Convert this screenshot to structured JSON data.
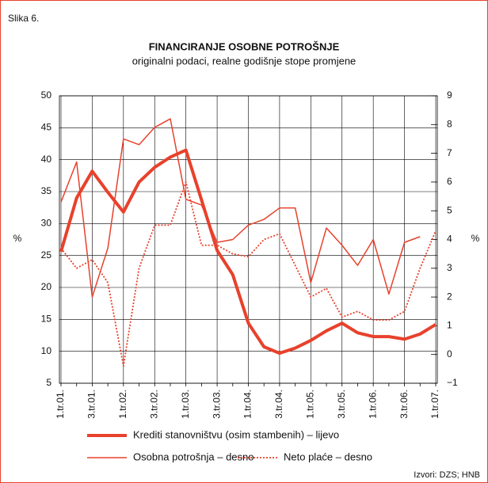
{
  "chart_data": {
    "type": "line",
    "figure_label": "Slika 6.",
    "title": "FINANCIRANJE OSOBNE POTROŠNJE",
    "subtitle": "originalni podaci, realne godišnje stope promjene",
    "ylabel": "%",
    "y2label": "%",
    "source": "Izvori: DZS; HNB",
    "categories": [
      "1.tr.01.",
      null,
      "3.tr.01.",
      null,
      "1.tr.02.",
      null,
      "3.tr.02.",
      null,
      "1.tr.03.",
      null,
      "3.tr.03.",
      null,
      "1.tr.04.",
      null,
      "3.tr.04.",
      null,
      "1.tr.05.",
      null,
      "3.tr.05.",
      null,
      "1.tr.06.",
      null,
      "3.tr.06.",
      null,
      "1.tr.07."
    ],
    "ylim": [
      5,
      50
    ],
    "yticks": [
      5,
      10,
      15,
      20,
      25,
      30,
      35,
      40,
      45,
      50
    ],
    "y2lim": [
      -1,
      9
    ],
    "y2ticks": [
      {
        "value": -1,
        "label": "−1"
      },
      0,
      1,
      2,
      3,
      4,
      5,
      6,
      7,
      8,
      9
    ],
    "grid": true,
    "series": [
      {
        "name": "Krediti stanovništvu (osim stambenih) – lijevo",
        "color": "#e8412c",
        "width": 4,
        "style": "solid",
        "values": [
          25.6,
          34,
          38.2,
          34.9,
          31.8,
          36.5,
          38.8,
          40.4,
          41.5,
          33.7,
          25.8,
          22,
          14.4,
          10.7,
          9.7,
          10.5,
          11.7,
          13.2,
          14.4,
          12.9,
          12.3,
          12.3,
          11.9,
          12.7,
          14.2
        ]
      },
      {
        "name": "Osobna potrošnja – desno",
        "color": "#e8412c",
        "width": 1.5,
        "style": "solid",
        "axis": "y2",
        "values": [
          5.3,
          6.7,
          2.0,
          3.7,
          7.5,
          7.3,
          7.9,
          8.2,
          5.4,
          5.2,
          3.9,
          4.0,
          4.5,
          4.7,
          5.1,
          5.1,
          2.5,
          4.4,
          3.8,
          3.1,
          4.0,
          2.1,
          3.9,
          4.1,
          null
        ]
      },
      {
        "name": "Neto plaće – desno",
        "color": "#e8412c",
        "width": 1.8,
        "style": "dotted",
        "axis": "y2",
        "values": [
          3.7,
          3.0,
          3.3,
          2.5,
          -0.4,
          3.0,
          4.5,
          4.5,
          6.0,
          3.8,
          3.8,
          3.5,
          3.4,
          4.0,
          4.2,
          3.1,
          2.0,
          2.3,
          1.3,
          1.5,
          1.2,
          1.2,
          1.5,
          3.0,
          4.3
        ]
      }
    ]
  }
}
